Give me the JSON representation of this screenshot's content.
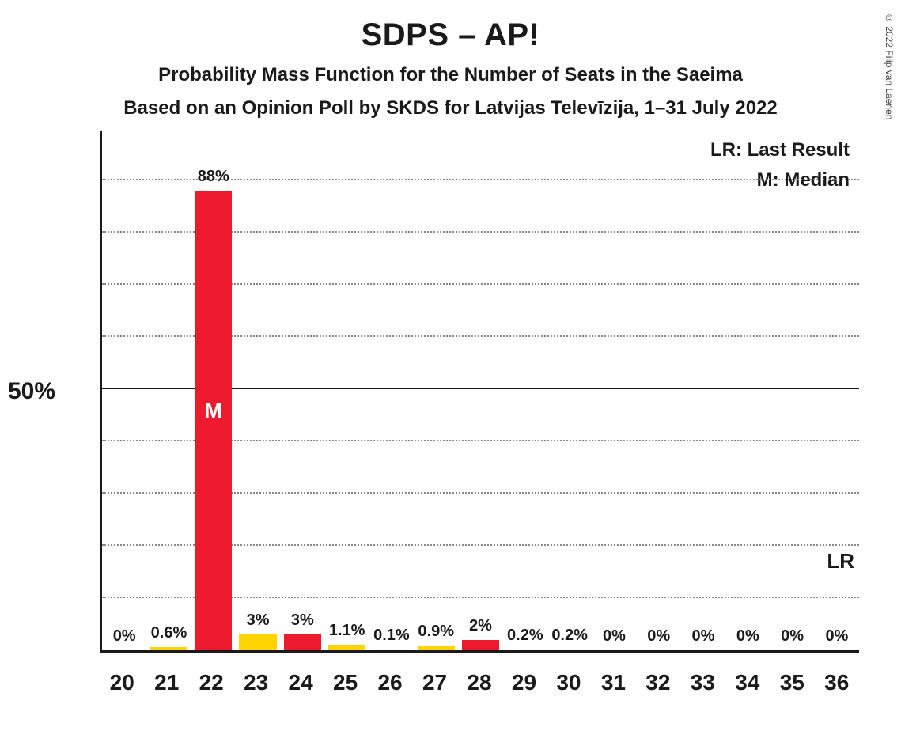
{
  "copyright": "© 2022 Filip van Laenen",
  "title": "SDPS – AP!",
  "subtitle1": "Probability Mass Function for the Number of Seats in the Saeima",
  "subtitle2": "Based on an Opinion Poll by SKDS for Latvijas Televīzija, 1–31 July 2022",
  "legend": {
    "lr": "LR: Last Result",
    "m": "M: Median"
  },
  "lr_mark": "LR",
  "yaxis": {
    "label": "50%",
    "label_at": 50,
    "max": 100,
    "gridlines": [
      10,
      20,
      30,
      40,
      50,
      60,
      70,
      80,
      90
    ],
    "major_at": 50
  },
  "colors": {
    "red": "#ee1b2e",
    "yellow": "#ffd400",
    "axis": "#1a1a1a",
    "grid": "#888888",
    "bg": "#ffffff"
  },
  "median_label": "M",
  "bars": [
    {
      "x": "20",
      "value": 0,
      "label": "0%",
      "color": "yellow",
      "median": false
    },
    {
      "x": "21",
      "value": 0.6,
      "label": "0.6%",
      "color": "yellow",
      "median": false
    },
    {
      "x": "22",
      "value": 88,
      "label": "88%",
      "color": "red",
      "median": true
    },
    {
      "x": "23",
      "value": 3,
      "label": "3%",
      "color": "yellow",
      "median": false
    },
    {
      "x": "24",
      "value": 3,
      "label": "3%",
      "color": "red",
      "median": false
    },
    {
      "x": "25",
      "value": 1.1,
      "label": "1.1%",
      "color": "yellow",
      "median": false
    },
    {
      "x": "26",
      "value": 0.1,
      "label": "0.1%",
      "color": "red",
      "median": false
    },
    {
      "x": "27",
      "value": 0.9,
      "label": "0.9%",
      "color": "yellow",
      "median": false
    },
    {
      "x": "28",
      "value": 2,
      "label": "2%",
      "color": "red",
      "median": false
    },
    {
      "x": "29",
      "value": 0.2,
      "label": "0.2%",
      "color": "yellow",
      "median": false
    },
    {
      "x": "30",
      "value": 0.2,
      "label": "0.2%",
      "color": "red",
      "median": false
    },
    {
      "x": "31",
      "value": 0,
      "label": "0%",
      "color": "yellow",
      "median": false
    },
    {
      "x": "32",
      "value": 0,
      "label": "0%",
      "color": "red",
      "median": false
    },
    {
      "x": "33",
      "value": 0,
      "label": "0%",
      "color": "yellow",
      "median": false
    },
    {
      "x": "34",
      "value": 0,
      "label": "0%",
      "color": "red",
      "median": false
    },
    {
      "x": "35",
      "value": 0,
      "label": "0%",
      "color": "yellow",
      "median": false
    },
    {
      "x": "36",
      "value": 0,
      "label": "0%",
      "color": "red",
      "median": false
    }
  ],
  "lr_at_gridline": 10
}
